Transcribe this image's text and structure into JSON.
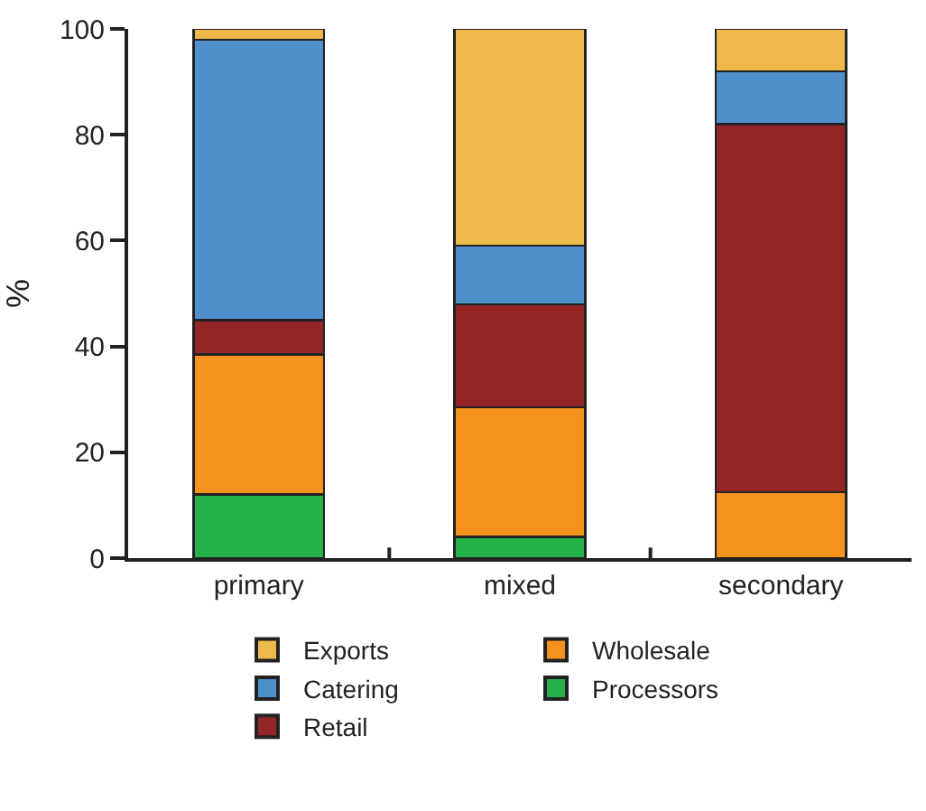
{
  "chart_data": {
    "type": "bar",
    "stacked": true,
    "ylabel": "%",
    "categories": [
      "primary",
      "mixed",
      "secondary"
    ],
    "series": [
      {
        "name": "Processors",
        "color": "#25b24b",
        "values": [
          12,
          4,
          0
        ]
      },
      {
        "name": "Wholesale",
        "color": "#f5931e",
        "values": [
          26.5,
          24.5,
          12.5
        ]
      },
      {
        "name": "Retail",
        "color": "#942626",
        "values": [
          6.5,
          19.5,
          69.5
        ]
      },
      {
        "name": "Catering",
        "color": "#4f8fcc",
        "values": [
          53,
          11,
          10
        ]
      },
      {
        "name": "Exports",
        "color": "#ecb94a",
        "values": [
          2,
          41,
          8
        ]
      }
    ],
    "ylim": [
      0,
      100
    ],
    "yticks": [
      0,
      20,
      40,
      60,
      80,
      100
    ],
    "legend": "bottom"
  }
}
